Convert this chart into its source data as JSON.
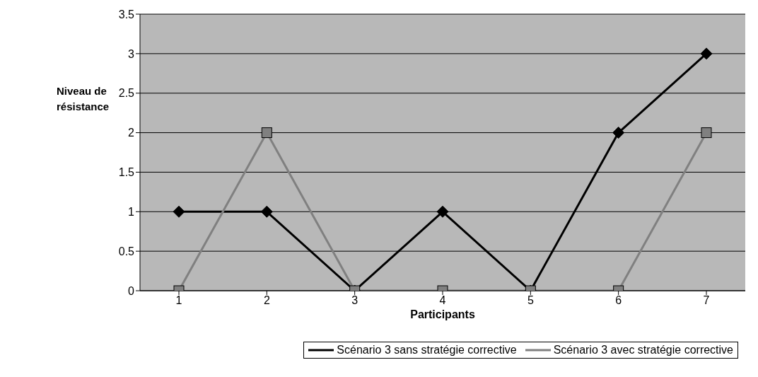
{
  "chart_data": {
    "type": "line",
    "xlabel": "Participants",
    "ylabel": "Niveau de résistance",
    "categories": [
      "1",
      "2",
      "3",
      "4",
      "5",
      "6",
      "7"
    ],
    "series": [
      {
        "name": "Scénario 3 sans stratégie corrective",
        "color": "#000000",
        "marker": "diamond",
        "values": [
          1,
          1,
          0,
          1,
          0,
          2,
          3
        ]
      },
      {
        "name": "Scénario 3 avec stratégie corrective",
        "color": "#808080",
        "marker": "square",
        "values": [
          0,
          2,
          0,
          0,
          0,
          0,
          2
        ]
      }
    ],
    "ylim": [
      0,
      3.5
    ],
    "yticks": [
      0,
      0.5,
      1,
      1.5,
      2,
      2.5,
      3,
      3.5
    ],
    "grid": "y",
    "legend": "bottom"
  }
}
